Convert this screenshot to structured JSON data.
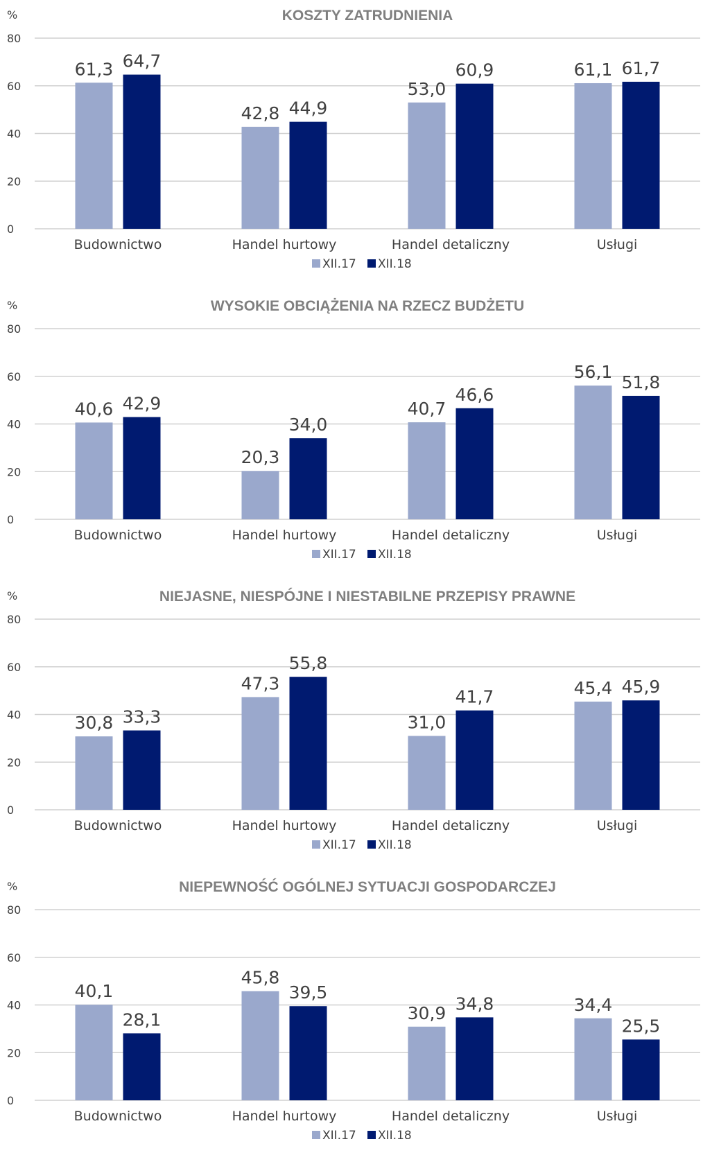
{
  "colors": {
    "series_1": "#9aa8cc",
    "series_2": "#001a70"
  },
  "chart_data": [
    {
      "type": "bar",
      "title": "KOSZTY ZATRUDNIENIA",
      "ylabel": "%",
      "ylim": [
        0,
        80
      ],
      "yticks": [
        0,
        20,
        40,
        60,
        80
      ],
      "grid": true,
      "legend": "bottom",
      "categories": [
        "Budownictwo",
        "Handel hurtowy",
        "Handel detaliczny",
        "Usługi"
      ],
      "series": [
        {
          "name": "XII.17",
          "values": [
            61.3,
            42.8,
            53.0,
            61.1
          ],
          "labels": [
            "61,3",
            "42,8",
            "53,0",
            "61,1"
          ]
        },
        {
          "name": "XII.18",
          "values": [
            64.7,
            44.9,
            60.9,
            61.7
          ],
          "labels": [
            "64,7",
            "44,9",
            "60,9",
            "61,7"
          ]
        }
      ]
    },
    {
      "type": "bar",
      "title": "WYSOKIE OBCIĄŻENIA NA RZECZ BUDŻETU",
      "ylabel": "%",
      "ylim": [
        0,
        80
      ],
      "yticks": [
        0,
        20,
        40,
        60,
        80
      ],
      "grid": true,
      "legend": "bottom",
      "categories": [
        "Budownictwo",
        "Handel hurtowy",
        "Handel detaliczny",
        "Usługi"
      ],
      "series": [
        {
          "name": "XII.17",
          "values": [
            40.6,
            20.3,
            40.7,
            56.1
          ],
          "labels": [
            "40,6",
            "20,3",
            "40,7",
            "56,1"
          ]
        },
        {
          "name": "XII.18",
          "values": [
            42.9,
            34.0,
            46.6,
            51.8
          ],
          "labels": [
            "42,9",
            "34,0",
            "46,6",
            "51,8"
          ]
        }
      ]
    },
    {
      "type": "bar",
      "title": "NIEJASNE, NIESPÓJNE I NIESTABILNE PRZEPISY PRAWNE",
      "ylabel": "%",
      "ylim": [
        0,
        80
      ],
      "yticks": [
        0,
        20,
        40,
        60,
        80
      ],
      "grid": true,
      "legend": "bottom",
      "categories": [
        "Budownictwo",
        "Handel hurtowy",
        "Handel detaliczny",
        "Usługi"
      ],
      "series": [
        {
          "name": "XII.17",
          "values": [
            30.8,
            47.3,
            31.0,
            45.4
          ],
          "labels": [
            "30,8",
            "47,3",
            "31,0",
            "45,4"
          ]
        },
        {
          "name": "XII.18",
          "values": [
            33.3,
            55.8,
            41.7,
            45.9
          ],
          "labels": [
            "33,3",
            "55,8",
            "41,7",
            "45,9"
          ]
        }
      ]
    },
    {
      "type": "bar",
      "title": "NIEPEWNOŚĆ OGÓLNEJ SYTUACJI GOSPODARCZEJ",
      "ylabel": "%",
      "ylim": [
        0,
        80
      ],
      "yticks": [
        0,
        20,
        40,
        60,
        80
      ],
      "grid": true,
      "legend": "bottom",
      "categories": [
        "Budownictwo",
        "Handel hurtowy",
        "Handel detaliczny",
        "Usługi"
      ],
      "series": [
        {
          "name": "XII.17",
          "values": [
            40.1,
            45.8,
            30.9,
            34.4
          ],
          "labels": [
            "40,1",
            "45,8",
            "30,9",
            "34,4"
          ]
        },
        {
          "name": "XII.18",
          "values": [
            28.1,
            39.5,
            34.8,
            25.5
          ],
          "labels": [
            "28,1",
            "39,5",
            "34,8",
            "25,5"
          ]
        }
      ]
    }
  ]
}
